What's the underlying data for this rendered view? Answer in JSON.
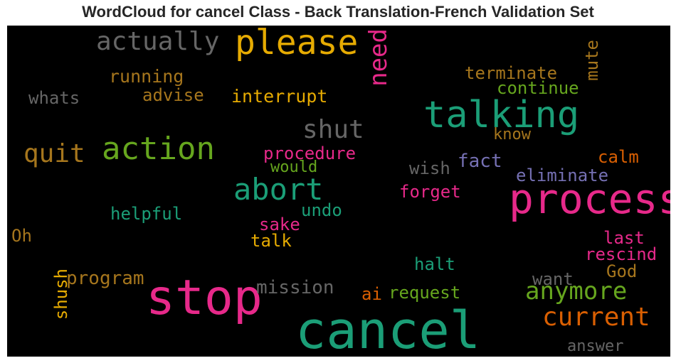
{
  "title": "WordCloud for cancel Class - Back Translation-French Validation Set",
  "words": [
    {
      "text": "cancel",
      "color": "#1b9e77"
    },
    {
      "text": "stop",
      "color": "#e7298a"
    },
    {
      "text": "process",
      "color": "#e7298a"
    },
    {
      "text": "talking",
      "color": "#1b9e77"
    },
    {
      "text": "please",
      "color": "#e6ab02"
    },
    {
      "text": "action",
      "color": "#66a61e"
    },
    {
      "text": "abort",
      "color": "#1b9e77"
    },
    {
      "text": "actually",
      "color": "#666666"
    },
    {
      "text": "current",
      "color": "#d95f02"
    },
    {
      "text": "anymore",
      "color": "#66a61e"
    },
    {
      "text": "quit",
      "color": "#a6761d"
    },
    {
      "text": "need",
      "color": "#e7298a"
    },
    {
      "text": "shut",
      "color": "#666666"
    },
    {
      "text": "mission",
      "color": "#666666"
    },
    {
      "text": "program",
      "color": "#a6761d"
    },
    {
      "text": "terminate",
      "color": "#a6761d"
    },
    {
      "text": "running",
      "color": "#a6761d"
    },
    {
      "text": "continue",
      "color": "#66a61e"
    },
    {
      "text": "interrupt",
      "color": "#e6ab02"
    },
    {
      "text": "advise",
      "color": "#a6761d"
    },
    {
      "text": "whats",
      "color": "#666666"
    },
    {
      "text": "procedure",
      "color": "#e7298a"
    },
    {
      "text": "eliminate",
      "color": "#7570b3"
    },
    {
      "text": "helpful",
      "color": "#1b9e77"
    },
    {
      "text": "request",
      "color": "#66a61e"
    },
    {
      "text": "rescind",
      "color": "#e7298a"
    },
    {
      "text": "forget",
      "color": "#e7298a"
    },
    {
      "text": "answer",
      "color": "#666666"
    },
    {
      "text": "mute",
      "color": "#a6761d"
    },
    {
      "text": "know",
      "color": "#a6761d"
    },
    {
      "text": "would",
      "color": "#66a61e"
    },
    {
      "text": "wish",
      "color": "#666666"
    },
    {
      "text": "fact",
      "color": "#7570b3"
    },
    {
      "text": "calm",
      "color": "#d95f02"
    },
    {
      "text": "undo",
      "color": "#1b9e77"
    },
    {
      "text": "sake",
      "color": "#e7298a"
    },
    {
      "text": "talk",
      "color": "#e6ab02"
    },
    {
      "text": "last",
      "color": "#e7298a"
    },
    {
      "text": "God",
      "color": "#a6761d"
    },
    {
      "text": "want",
      "color": "#666666"
    },
    {
      "text": "halt",
      "color": "#1b9e77"
    },
    {
      "text": "shush",
      "color": "#e6ab02"
    },
    {
      "text": "ai",
      "color": "#d95f02"
    },
    {
      "text": "Oh",
      "color": "#a6761d"
    }
  ]
}
